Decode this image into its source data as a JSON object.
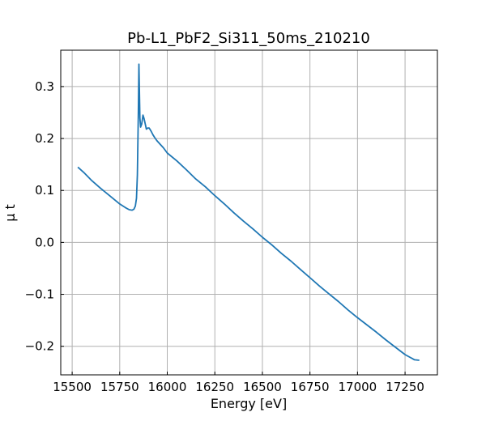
{
  "chart_data": {
    "type": "line",
    "title": "Pb-L1_PbF2_Si311_50ms_210210",
    "xlabel": "Energy [eV]",
    "ylabel": "μ t",
    "xlim": [
      15440,
      17420
    ],
    "ylim": [
      -0.255,
      0.37
    ],
    "x_ticks": [
      15500,
      15750,
      16000,
      16250,
      16500,
      16750,
      17000,
      17250
    ],
    "y_ticks": [
      -0.2,
      -0.1,
      0.0,
      0.1,
      0.2,
      0.3
    ],
    "x_tick_labels": [
      "15500",
      "15750",
      "16000",
      "16250",
      "16500",
      "16750",
      "17000",
      "17250"
    ],
    "y_tick_labels": [
      "−0.2",
      "−0.1",
      "0.0",
      "0.1",
      "0.2",
      "0.3"
    ],
    "grid": true,
    "series": [
      {
        "color": "#1f77b4",
        "x": [
          15530,
          15560,
          15600,
          15650,
          15700,
          15750,
          15780,
          15800,
          15815,
          15825,
          15832,
          15838,
          15843,
          15848,
          15851,
          15853,
          15856,
          15860,
          15866,
          15872,
          15878,
          15884,
          15890,
          15897,
          15905,
          15915,
          15925,
          15935,
          15945,
          15960,
          15980,
          16000,
          16050,
          16100,
          16150,
          16200,
          16250,
          16300,
          16350,
          16400,
          16450,
          16500,
          16550,
          16600,
          16650,
          16700,
          16750,
          16800,
          16850,
          16900,
          16950,
          17000,
          17050,
          17100,
          17150,
          17200,
          17250,
          17300,
          17325
        ],
        "y": [
          0.145,
          0.135,
          0.12,
          0.104,
          0.089,
          0.074,
          0.067,
          0.063,
          0.062,
          0.064,
          0.07,
          0.085,
          0.13,
          0.25,
          0.343,
          0.3,
          0.24,
          0.222,
          0.228,
          0.245,
          0.238,
          0.228,
          0.218,
          0.22,
          0.22,
          0.214,
          0.207,
          0.201,
          0.196,
          0.19,
          0.182,
          0.172,
          0.157,
          0.14,
          0.122,
          0.107,
          0.09,
          0.074,
          0.057,
          0.041,
          0.026,
          0.01,
          -0.005,
          -0.021,
          -0.036,
          -0.052,
          -0.068,
          -0.084,
          -0.099,
          -0.114,
          -0.13,
          -0.145,
          -0.159,
          -0.173,
          -0.188,
          -0.202,
          -0.216,
          -0.226,
          -0.227
        ]
      }
    ]
  }
}
